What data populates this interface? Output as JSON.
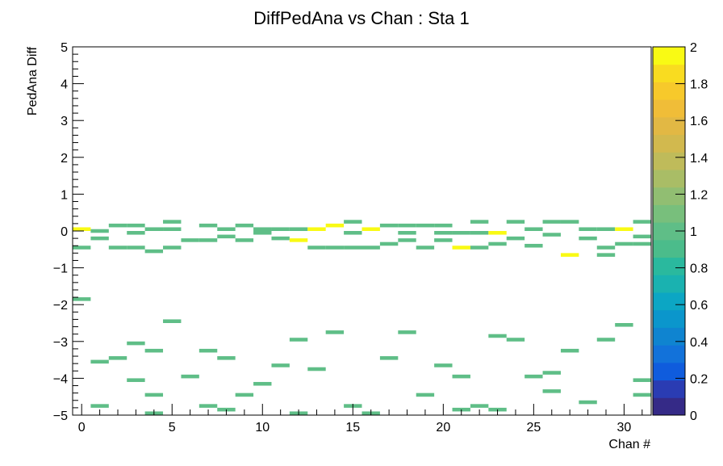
{
  "chart_data": {
    "type": "heatmap",
    "title": "DiffPedAna vs Chan : Sta 1",
    "xlabel": "Chan #",
    "ylabel": "PedAna Diff",
    "xlim": [
      -0.5,
      31.5
    ],
    "ylim": [
      -5,
      5
    ],
    "x_ticks": [
      "0",
      "5",
      "10",
      "15",
      "20",
      "25",
      "30"
    ],
    "y_ticks": [
      "−5",
      "−4",
      "−3",
      "−2",
      "−1",
      "0",
      "1",
      "2",
      "3",
      "4",
      "5"
    ],
    "colorbar": {
      "min": 0,
      "max": 2,
      "ticks": [
        "0",
        "0.2",
        "0.4",
        "0.6",
        "0.8",
        "1",
        "1.2",
        "1.4",
        "1.6",
        "1.8",
        "2"
      ],
      "colors": [
        "#352a87",
        "#2a3cb3",
        "#0f5cdd",
        "#1272da",
        "#0f84d0",
        "#0b96cc",
        "#0ca6c4",
        "#1ab2b0",
        "#2ab99e",
        "#4bbc8b",
        "#5fbe87",
        "#78bf7c",
        "#91be72",
        "#a9bd66",
        "#bfbb5a",
        "#d2b94e",
        "#e2b844",
        "#f0bd38",
        "#f7c92b",
        "#f9dc20",
        "#f9fa14"
      ]
    },
    "cells": [
      {
        "chan": 0,
        "y": 0.05,
        "v": 2
      },
      {
        "chan": 0,
        "y": -0.45,
        "v": 1
      },
      {
        "chan": 0,
        "y": -1.85,
        "v": 1
      },
      {
        "chan": 1,
        "y": 0.0,
        "v": 1
      },
      {
        "chan": 1,
        "y": -0.2,
        "v": 1
      },
      {
        "chan": 1,
        "y": -3.55,
        "v": 1
      },
      {
        "chan": 1,
        "y": -4.75,
        "v": 1
      },
      {
        "chan": 2,
        "y": 0.15,
        "v": 1
      },
      {
        "chan": 2,
        "y": -0.45,
        "v": 1
      },
      {
        "chan": 2,
        "y": -3.45,
        "v": 1
      },
      {
        "chan": 3,
        "y": 0.15,
        "v": 1
      },
      {
        "chan": 3,
        "y": -0.05,
        "v": 1
      },
      {
        "chan": 3,
        "y": -0.45,
        "v": 1
      },
      {
        "chan": 3,
        "y": -3.05,
        "v": 1
      },
      {
        "chan": 3,
        "y": -4.05,
        "v": 1
      },
      {
        "chan": 4,
        "y": 0.05,
        "v": 1
      },
      {
        "chan": 4,
        "y": -0.55,
        "v": 1
      },
      {
        "chan": 4,
        "y": -3.25,
        "v": 1
      },
      {
        "chan": 4,
        "y": -4.45,
        "v": 1
      },
      {
        "chan": 4,
        "y": -4.95,
        "v": 1
      },
      {
        "chan": 5,
        "y": 0.25,
        "v": 1
      },
      {
        "chan": 5,
        "y": 0.05,
        "v": 1
      },
      {
        "chan": 5,
        "y": -0.45,
        "v": 1
      },
      {
        "chan": 5,
        "y": -2.45,
        "v": 1
      },
      {
        "chan": 6,
        "y": -0.25,
        "v": 1
      },
      {
        "chan": 6,
        "y": -3.95,
        "v": 1
      },
      {
        "chan": 7,
        "y": 0.15,
        "v": 1
      },
      {
        "chan": 7,
        "y": -0.25,
        "v": 1
      },
      {
        "chan": 7,
        "y": -3.25,
        "v": 1
      },
      {
        "chan": 7,
        "y": -4.75,
        "v": 1
      },
      {
        "chan": 8,
        "y": 0.05,
        "v": 1
      },
      {
        "chan": 8,
        "y": -0.15,
        "v": 1
      },
      {
        "chan": 8,
        "y": -3.45,
        "v": 1
      },
      {
        "chan": 8,
        "y": -4.85,
        "v": 1
      },
      {
        "chan": 9,
        "y": 0.15,
        "v": 1
      },
      {
        "chan": 9,
        "y": -0.25,
        "v": 1
      },
      {
        "chan": 9,
        "y": -4.45,
        "v": 1
      },
      {
        "chan": 10,
        "y": 0.05,
        "v": 1
      },
      {
        "chan": 10,
        "y": -0.05,
        "v": 1
      },
      {
        "chan": 10,
        "y": -4.15,
        "v": 1
      },
      {
        "chan": 11,
        "y": 0.05,
        "v": 1
      },
      {
        "chan": 11,
        "y": -0.2,
        "v": 1
      },
      {
        "chan": 11,
        "y": -3.65,
        "v": 1
      },
      {
        "chan": 12,
        "y": 0.05,
        "v": 1
      },
      {
        "chan": 12,
        "y": -0.25,
        "v": 2
      },
      {
        "chan": 12,
        "y": -2.95,
        "v": 1
      },
      {
        "chan": 12,
        "y": -4.95,
        "v": 1
      },
      {
        "chan": 13,
        "y": 0.05,
        "v": 2
      },
      {
        "chan": 13,
        "y": -0.45,
        "v": 1
      },
      {
        "chan": 13,
        "y": -3.75,
        "v": 1
      },
      {
        "chan": 14,
        "y": 0.15,
        "v": 2
      },
      {
        "chan": 14,
        "y": -0.45,
        "v": 1
      },
      {
        "chan": 14,
        "y": -2.75,
        "v": 1
      },
      {
        "chan": 15,
        "y": 0.25,
        "v": 1
      },
      {
        "chan": 15,
        "y": -0.05,
        "v": 1
      },
      {
        "chan": 15,
        "y": -0.45,
        "v": 1
      },
      {
        "chan": 15,
        "y": -4.75,
        "v": 1
      },
      {
        "chan": 16,
        "y": 0.05,
        "v": 2
      },
      {
        "chan": 16,
        "y": -0.45,
        "v": 1
      },
      {
        "chan": 16,
        "y": -4.95,
        "v": 1
      },
      {
        "chan": 17,
        "y": 0.15,
        "v": 1
      },
      {
        "chan": 17,
        "y": -0.35,
        "v": 1
      },
      {
        "chan": 17,
        "y": -3.45,
        "v": 1
      },
      {
        "chan": 18,
        "y": 0.15,
        "v": 1
      },
      {
        "chan": 18,
        "y": -0.05,
        "v": 1
      },
      {
        "chan": 18,
        "y": -0.25,
        "v": 1
      },
      {
        "chan": 18,
        "y": -2.75,
        "v": 1
      },
      {
        "chan": 19,
        "y": 0.15,
        "v": 1
      },
      {
        "chan": 19,
        "y": -0.45,
        "v": 1
      },
      {
        "chan": 19,
        "y": -4.45,
        "v": 1
      },
      {
        "chan": 20,
        "y": 0.15,
        "v": 1
      },
      {
        "chan": 20,
        "y": -0.05,
        "v": 1
      },
      {
        "chan": 20,
        "y": -0.25,
        "v": 1
      },
      {
        "chan": 20,
        "y": -3.65,
        "v": 1
      },
      {
        "chan": 21,
        "y": -0.05,
        "v": 1
      },
      {
        "chan": 21,
        "y": -0.45,
        "v": 2
      },
      {
        "chan": 21,
        "y": -3.95,
        "v": 1
      },
      {
        "chan": 21,
        "y": -4.85,
        "v": 1
      },
      {
        "chan": 22,
        "y": 0.25,
        "v": 1
      },
      {
        "chan": 22,
        "y": -0.05,
        "v": 1
      },
      {
        "chan": 22,
        "y": -0.45,
        "v": 1
      },
      {
        "chan": 22,
        "y": -4.75,
        "v": 1
      },
      {
        "chan": 23,
        "y": -0.05,
        "v": 2
      },
      {
        "chan": 23,
        "y": -0.35,
        "v": 1
      },
      {
        "chan": 23,
        "y": -2.85,
        "v": 1
      },
      {
        "chan": 23,
        "y": -4.85,
        "v": 1
      },
      {
        "chan": 24,
        "y": 0.25,
        "v": 1
      },
      {
        "chan": 24,
        "y": -0.2,
        "v": 1
      },
      {
        "chan": 24,
        "y": -2.95,
        "v": 1
      },
      {
        "chan": 25,
        "y": 0.05,
        "v": 1
      },
      {
        "chan": 25,
        "y": -0.4,
        "v": 1
      },
      {
        "chan": 25,
        "y": -3.95,
        "v": 1
      },
      {
        "chan": 26,
        "y": 0.25,
        "v": 1
      },
      {
        "chan": 26,
        "y": -0.1,
        "v": 1
      },
      {
        "chan": 26,
        "y": -3.85,
        "v": 1
      },
      {
        "chan": 26,
        "y": -4.35,
        "v": 1
      },
      {
        "chan": 27,
        "y": 0.25,
        "v": 1
      },
      {
        "chan": 27,
        "y": -0.65,
        "v": 2
      },
      {
        "chan": 27,
        "y": -3.25,
        "v": 1
      },
      {
        "chan": 28,
        "y": 0.05,
        "v": 1
      },
      {
        "chan": 28,
        "y": -0.2,
        "v": 1
      },
      {
        "chan": 28,
        "y": -4.65,
        "v": 1
      },
      {
        "chan": 29,
        "y": 0.05,
        "v": 1
      },
      {
        "chan": 29,
        "y": -0.45,
        "v": 1
      },
      {
        "chan": 29,
        "y": -0.65,
        "v": 1
      },
      {
        "chan": 29,
        "y": -2.95,
        "v": 1
      },
      {
        "chan": 30,
        "y": 0.05,
        "v": 2
      },
      {
        "chan": 30,
        "y": -0.35,
        "v": 1
      },
      {
        "chan": 30,
        "y": -2.55,
        "v": 1
      },
      {
        "chan": 31,
        "y": 0.25,
        "v": 1
      },
      {
        "chan": 31,
        "y": -0.15,
        "v": 1
      },
      {
        "chan": 31,
        "y": -0.35,
        "v": 1
      },
      {
        "chan": 31,
        "y": -4.05,
        "v": 1
      },
      {
        "chan": 31,
        "y": -4.45,
        "v": 1
      }
    ]
  }
}
